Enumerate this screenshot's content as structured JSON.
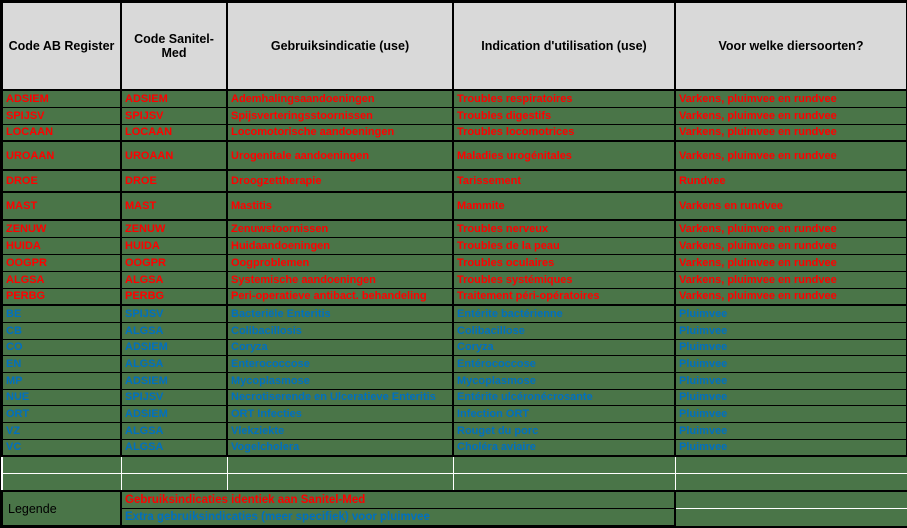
{
  "table": {
    "headers": [
      "Code AB Register",
      "Code Sanitel-Med",
      "Gebruiksindicatie (use)",
      "Indication d'utilisation (use)",
      "Voor welke diersoorten?"
    ],
    "rows": [
      {
        "code_ab": "ADSIEM",
        "code_sanitel": "ADSIEM",
        "use_nl": "Ademhalingsaandoeningen",
        "use_fr": "Troubles respiratoires",
        "species": "Varkens, pluimvee en rundvee",
        "category": "identical"
      },
      {
        "code_ab": "SPIJSV",
        "code_sanitel": "SPIJSV",
        "use_nl": "Spijsverteringsstoornissen",
        "use_fr": "Troubles digestifs",
        "species": "Varkens, pluimvee en rundvee",
        "category": "identical"
      },
      {
        "code_ab": "LOCAAN",
        "code_sanitel": "LOCAAN",
        "use_nl": "Locomotorische aandoeningen",
        "use_fr": "Troubles locomotrices",
        "species": "Varkens, pluimvee en rundvee",
        "category": "identical"
      },
      {
        "code_ab": "UROAAN",
        "code_sanitel": "UROAAN",
        "use_nl": "Urogenitale aandoeningen",
        "use_fr": "Maladies urogénitales",
        "species": "Varkens, pluimvee en rundvee",
        "category": "identical"
      },
      {
        "code_ab": "DROE",
        "code_sanitel": "DROE",
        "use_nl": "Droogzettherapie",
        "use_fr": "Tarissement",
        "species": "Rundvee",
        "category": "identical"
      },
      {
        "code_ab": "MAST",
        "code_sanitel": "MAST",
        "use_nl": "Mastitis",
        "use_fr": "Mammite",
        "species": "Varkens en rundvee",
        "category": "identical"
      },
      {
        "code_ab": "ZENUW",
        "code_sanitel": "ZENUW",
        "use_nl": "Zenuwstoornissen",
        "use_fr": "Troubles nerveux",
        "species": "Varkens, pluimvee en rundvee",
        "category": "identical"
      },
      {
        "code_ab": "HUIDA",
        "code_sanitel": "HUIDA",
        "use_nl": "Huidaandoeningen",
        "use_fr": "Troubles de la peau",
        "species": "Varkens, pluimvee en rundvee",
        "category": "identical"
      },
      {
        "code_ab": "OOGPR",
        "code_sanitel": "OOGPR",
        "use_nl": "Oogproblemen",
        "use_fr": "Troubles oculaires",
        "species": "Varkens, pluimvee en rundvee",
        "category": "identical"
      },
      {
        "code_ab": "ALGSA",
        "code_sanitel": "ALGSA",
        "use_nl": "Systemische aandoeningen",
        "use_fr": "Troubles systémiques",
        "species": "Varkens, pluimvee en rundvee",
        "category": "identical"
      },
      {
        "code_ab": "PERBG",
        "code_sanitel": "PERBG",
        "use_nl": "Peri-operatieve antibact. behandeling",
        "use_fr": "Traitement péri-opératoires",
        "species": "Varkens, pluimvee en rundvee",
        "category": "identical"
      },
      {
        "code_ab": "BE",
        "code_sanitel": "SPIJSV",
        "use_nl": "Bacteriële Enteritis",
        "use_fr": "Entérite bactérienne",
        "species": "Pluimvee",
        "category": "extra"
      },
      {
        "code_ab": "CB",
        "code_sanitel": "ALGSA",
        "use_nl": "Colibacillosis",
        "use_fr": "Colibacillose",
        "species": "Pluimvee",
        "category": "extra"
      },
      {
        "code_ab": "CO",
        "code_sanitel": "ADSIEM",
        "use_nl": "Coryza",
        "use_fr": "Coryza",
        "species": "Pluimvee",
        "category": "extra"
      },
      {
        "code_ab": "EN",
        "code_sanitel": "ALGSA",
        "use_nl": "Enterococcose",
        "use_fr": "Entérococcose",
        "species": "Pluimvee",
        "category": "extra"
      },
      {
        "code_ab": "MP",
        "code_sanitel": "ADSIEM",
        "use_nl": "Mycoplasmose",
        "use_fr": "Mycoplasmose",
        "species": "Pluimvee",
        "category": "extra"
      },
      {
        "code_ab": "NUE",
        "code_sanitel": "SPIJSV",
        "use_nl": "Necrotiserende en Ulceratieve Enteritis",
        "use_fr": "Entérite ulcéronécrosante",
        "species": "Pluimvee",
        "category": "extra"
      },
      {
        "code_ab": "ORT",
        "code_sanitel": "ADSIEM",
        "use_nl": "ORT Infecties",
        "use_fr": "Infection ORT",
        "species": "Pluimvee",
        "category": "extra"
      },
      {
        "code_ab": "VZ",
        "code_sanitel": "ALGSA",
        "use_nl": "Vlekziekte",
        "use_fr": "Rouget du porc",
        "species": "Pluimvee",
        "category": "extra"
      },
      {
        "code_ab": "VC",
        "code_sanitel": "ALGSA",
        "use_nl": "Vogelcholera",
        "use_fr": "Choléra aviaire",
        "species": "Pluimvee",
        "category": "extra"
      }
    ]
  },
  "legend": {
    "label": "Legende",
    "items": [
      {
        "text": "Gebruiksindicaties identiek aan Sanitel-Med",
        "style": "red"
      },
      {
        "text": "Extra gebruiksindicaties (meer specifiek) voor pluimvee",
        "style": "blue"
      }
    ]
  },
  "colors": {
    "green": "#4a7548",
    "header_gray": "#d9d9d9",
    "red": "#ff0000",
    "blue": "#0070c0"
  }
}
